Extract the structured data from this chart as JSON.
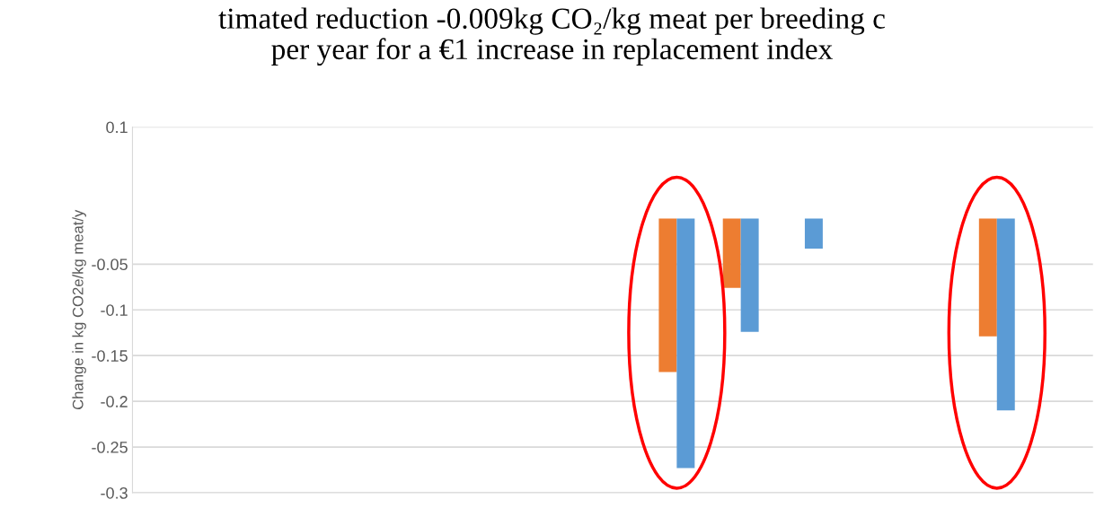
{
  "chart_data": {
    "type": "bar",
    "title": "timated reduction -0.009kg CO₂/kg meat per breeding c\nper year for a €1 increase in replacement index",
    "ylabel": "Change in kg CO2e/kg meat/y",
    "categories": [
      null,
      null,
      null,
      null,
      null,
      null,
      null,
      null,
      null,
      null,
      null,
      null,
      null,
      null,
      null
    ],
    "series": [
      {
        "color": "#ed7d31",
        "values": [
          null,
          null,
          null,
          null,
          null,
          null,
          null,
          null,
          -0.168,
          -0.076,
          null,
          null,
          null,
          -0.129,
          null
        ]
      },
      {
        "color": "#5b9bd5",
        "values": [
          null,
          null,
          null,
          null,
          null,
          null,
          null,
          null,
          -0.273,
          -0.124,
          -0.033,
          null,
          null,
          -0.21,
          null
        ]
      }
    ],
    "ylim": [
      -0.3,
      0.1
    ],
    "yticks": [
      0.1,
      -0.05,
      -0.1,
      -0.15,
      -0.2,
      -0.25,
      -0.3
    ],
    "grid": "y"
  }
}
